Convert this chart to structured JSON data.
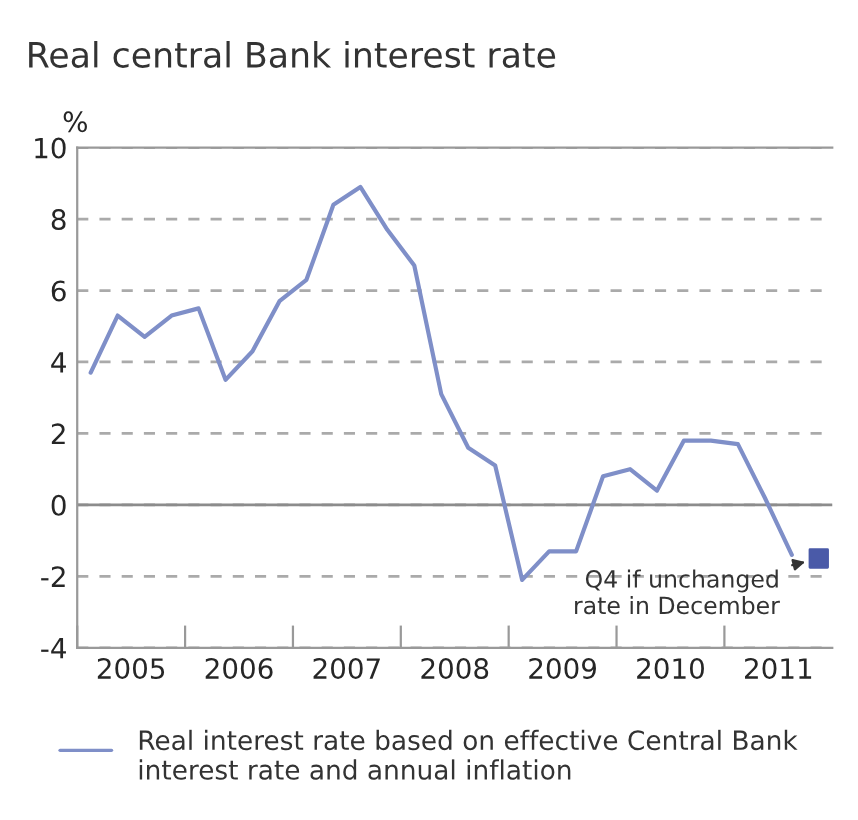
{
  "chart_data": {
    "type": "line",
    "title": "Real central Bank interest rate",
    "ylabel": "%",
    "xlim": [
      2005,
      2012
    ],
    "xticks": [
      {
        "value": 2005,
        "label": null
      },
      {
        "value": 2005.5,
        "label": "2005"
      },
      {
        "value": 2006,
        "label": null
      },
      {
        "value": 2006.5,
        "label": "2006"
      },
      {
        "value": 2007,
        "label": null
      },
      {
        "value": 2007.5,
        "label": "2007"
      },
      {
        "value": 2008,
        "label": null
      },
      {
        "value": 2008.5,
        "label": "2008"
      },
      {
        "value": 2009,
        "label": null
      },
      {
        "value": 2009.5,
        "label": "2009"
      },
      {
        "value": 2010,
        "label": null
      },
      {
        "value": 2010.5,
        "label": "2010"
      },
      {
        "value": 2011,
        "label": null
      },
      {
        "value": 2011.5,
        "label": "2011"
      }
    ],
    "ylim": [
      -4,
      10
    ],
    "yticks": [
      -4,
      -2,
      0,
      2,
      4,
      6,
      8,
      10
    ],
    "grid": "y",
    "legend": "bottom",
    "ref_lines": [
      {
        "axis": "y",
        "value": 0,
        "color": "#8c8c8c",
        "line_style": "solid"
      }
    ],
    "series": [
      {
        "name": "Real interest rate based on effective Central Bank interest rate and annual inflation",
        "color": "#7f8fc8",
        "marker": "none",
        "x": [
          2005.125,
          2005.375,
          2005.625,
          2005.875,
          2006.125,
          2006.375,
          2006.625,
          2006.875,
          2007.125,
          2007.375,
          2007.625,
          2007.875,
          2008.125,
          2008.375,
          2008.625,
          2008.875,
          2009.125,
          2009.375,
          2009.625,
          2009.875,
          2010.125,
          2010.375,
          2010.625,
          2010.875,
          2011.125,
          2011.375,
          2011.625
        ],
        "values": [
          3.7,
          5.3,
          4.7,
          5.3,
          5.5,
          3.5,
          4.3,
          5.7,
          6.3,
          8.4,
          8.9,
          7.7,
          6.7,
          3.1,
          1.6,
          1.1,
          -2.1,
          -1.3,
          -1.3,
          0.8,
          1.0,
          0.4,
          1.8,
          1.8,
          1.7,
          0.2,
          -1.4
        ]
      },
      {
        "type": "scatter",
        "color": "#4a5aa8",
        "marker": "square",
        "x": [
          2011.875
        ],
        "values": [
          -1.5
        ]
      }
    ],
    "annotations": [
      {
        "text": "Q4 if unchanged\nrate in December",
        "x": 2011.875,
        "y": -1.5
      }
    ]
  }
}
